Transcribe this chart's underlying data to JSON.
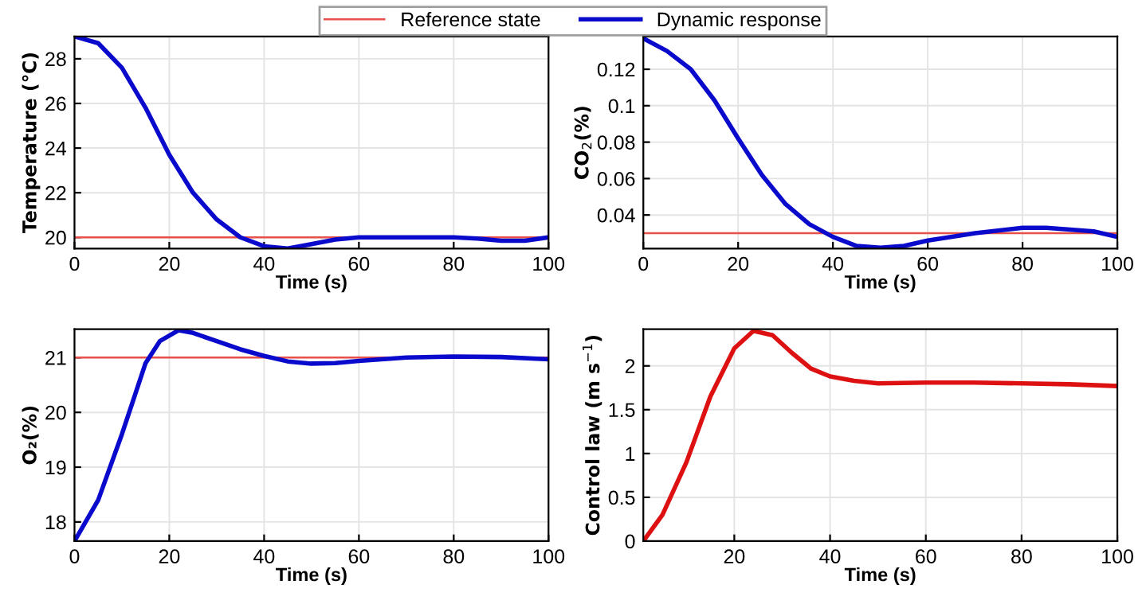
{
  "chart_data": [
    {
      "type": "line",
      "xlabel": "Time (s)",
      "ylabel": "Temperature (℃)",
      "xlim": [
        0,
        100
      ],
      "ylim": [
        19.5,
        29
      ],
      "xticks": [
        0,
        20,
        40,
        60,
        80,
        100
      ],
      "yticks": [
        20,
        22,
        24,
        26,
        28
      ],
      "grid": true,
      "legend": "top",
      "x": [
        0,
        5,
        10,
        15,
        20,
        25,
        30,
        35,
        40,
        45,
        50,
        55,
        60,
        70,
        80,
        85,
        90,
        95,
        100
      ],
      "series": [
        {
          "name": "Dynamic response",
          "color": "#0a0acc",
          "values": [
            29,
            28.7,
            27.6,
            25.8,
            23.7,
            22.0,
            20.8,
            20.0,
            19.6,
            19.5,
            19.7,
            19.9,
            20.0,
            20.0,
            20.0,
            19.95,
            19.85,
            19.85,
            20.0
          ]
        }
      ],
      "ref_lines": [
        {
          "axis": "y",
          "value": 20,
          "label": "Reference state",
          "color": "#e8504a"
        }
      ]
    },
    {
      "type": "line",
      "xlabel": "Time (s)",
      "ylabel": "CO$_{2}$(%)",
      "xlim": [
        0,
        100
      ],
      "ylim": [
        0.0216,
        0.138
      ],
      "xticks": [
        0,
        20,
        40,
        60,
        80,
        100
      ],
      "yticks": [
        0.04,
        0.06,
        0.08,
        0.1,
        0.12
      ],
      "grid": true,
      "x": [
        0,
        5,
        10,
        15,
        20,
        25,
        30,
        35,
        40,
        45,
        50,
        55,
        60,
        70,
        80,
        85,
        90,
        95,
        100
      ],
      "series": [
        {
          "color": "#0a0acc",
          "values": [
            0.137,
            0.13,
            0.12,
            0.103,
            0.082,
            0.062,
            0.046,
            0.035,
            0.028,
            0.023,
            0.022,
            0.023,
            0.026,
            0.03,
            0.033,
            0.033,
            0.032,
            0.031,
            0.028
          ]
        }
      ],
      "ref_lines": [
        {
          "axis": "y",
          "value": 0.03,
          "color": "#e8504a"
        }
      ]
    },
    {
      "type": "line",
      "xlabel": "Time (s)",
      "ylabel": "O₂(%)",
      "xlim": [
        0,
        100
      ],
      "ylim": [
        17.65,
        21.52
      ],
      "xticks": [
        0,
        20,
        40,
        60,
        80,
        100
      ],
      "yticks": [
        18,
        19,
        20,
        21
      ],
      "grid": true,
      "x": [
        0,
        5,
        10,
        15,
        18,
        22,
        25,
        30,
        35,
        40,
        45,
        50,
        55,
        60,
        70,
        80,
        90,
        100
      ],
      "series": [
        {
          "color": "#0a0acc",
          "values": [
            17.65,
            18.4,
            19.6,
            20.9,
            21.3,
            21.5,
            21.45,
            21.3,
            21.15,
            21.03,
            20.93,
            20.89,
            20.9,
            20.94,
            21.0,
            21.02,
            21.01,
            20.97
          ]
        }
      ],
      "ref_lines": [
        {
          "axis": "y",
          "value": 21,
          "color": "#e8504a"
        }
      ]
    },
    {
      "type": "line",
      "xlabel": "Time (s)",
      "ylabel": "Control law (m s$^{−1}$)",
      "xlim": [
        1,
        100
      ],
      "ylim": [
        0,
        2.42
      ],
      "xticks": [
        20,
        40,
        60,
        80,
        100
      ],
      "yticks": [
        0,
        0.5,
        1,
        1.5,
        2
      ],
      "grid": true,
      "x": [
        1,
        5,
        10,
        15,
        20,
        24,
        28,
        32,
        36,
        40,
        45,
        50,
        60,
        70,
        80,
        90,
        100
      ],
      "series": [
        {
          "color": "#dd1111",
          "values": [
            0,
            0.3,
            0.9,
            1.65,
            2.2,
            2.4,
            2.35,
            2.15,
            1.97,
            1.88,
            1.83,
            1.8,
            1.81,
            1.81,
            1.8,
            1.79,
            1.77
          ]
        }
      ]
    }
  ]
}
